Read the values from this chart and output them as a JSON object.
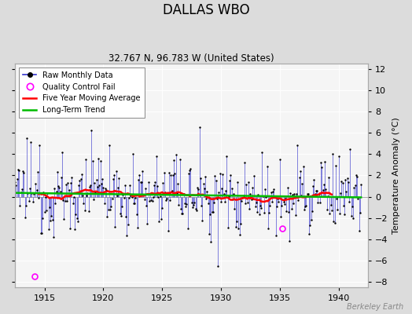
{
  "title": "DALLAS WBO",
  "subtitle": "32.767 N, 96.783 W (United States)",
  "ylabel": "Temperature Anomaly (°C)",
  "watermark": "Berkeley Earth",
  "xlim": [
    1912.5,
    1942.5
  ],
  "ylim": [
    -8.5,
    12.5
  ],
  "yticks": [
    -8,
    -6,
    -4,
    -2,
    0,
    2,
    4,
    6,
    8,
    10,
    12
  ],
  "xticks": [
    1915,
    1920,
    1925,
    1930,
    1935,
    1940
  ],
  "bg_color": "#dcdcdc",
  "plot_bg_color": "#f5f5f5",
  "raw_color": "#3333cc",
  "dot_color": "#000000",
  "qc_color": "#ff00ff",
  "mavg_color": "#ff0000",
  "trend_color": "#00bb00",
  "seed": 42,
  "n_months": 360,
  "start_year": 1912.0
}
